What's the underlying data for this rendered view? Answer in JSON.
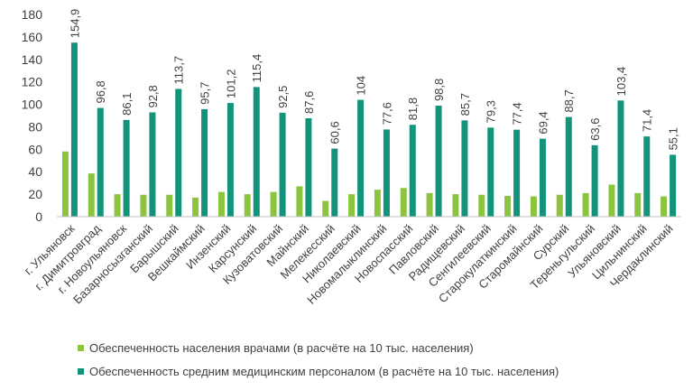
{
  "chart_data": {
    "type": "bar",
    "categories": [
      "г. Ульяновск",
      "г. Димитровград",
      "г. Новоульяновск",
      "Базарносызганский",
      "Барышский",
      "Вешкаймский",
      "Инзенский",
      "Карсунский",
      "Кузоватовский",
      "Майнский",
      "Мелекесский",
      "Николаевский",
      "Новомалыклинский",
      "Новоспасский",
      "Павловский",
      "Радищевский",
      "Сенгилеевский",
      "Старокулаткинский",
      "Старомайнский",
      "Сурский",
      "Тереньгульский",
      "Ульяновский",
      "Цильнинский",
      "Чердаклинский"
    ],
    "series": [
      {
        "name": "Обеспеченность населения врачами (в расчёте на 10 тыс. населения)",
        "color": "#8cc43f",
        "values": [
          58,
          38.5,
          20,
          19.5,
          19.5,
          17,
          22,
          20,
          22,
          27,
          14,
          20,
          24,
          25.5,
          21,
          20,
          19.5,
          18.5,
          18,
          19.5,
          21,
          28.5,
          21,
          18
        ]
      },
      {
        "name": "Обеспеченность средним медицинским персоналом (в расчёте на 10 тыс. населения)",
        "color": "#13947a",
        "values": [
          154.9,
          96.8,
          86.1,
          92.8,
          113.7,
          95.7,
          101.2,
          115.4,
          92.5,
          87.6,
          60.6,
          104,
          77.6,
          81.8,
          98.8,
          85.7,
          79.3,
          77.4,
          69.4,
          88.7,
          63.6,
          103.4,
          71.4,
          55.1
        ],
        "labels": [
          "154,9",
          "96,8",
          "86,1",
          "92,8",
          "113,7",
          "95,7",
          "101,2",
          "115,4",
          "92,5",
          "87,6",
          "60,6",
          "104",
          "77,6",
          "81,8",
          "98,8",
          "85,7",
          "79,3",
          "77,4",
          "69,4",
          "88,7",
          "63,6",
          "103,4",
          "71,4",
          "55,1"
        ]
      }
    ],
    "yticks": [
      "0",
      "20",
      "40",
      "60",
      "80",
      "100",
      "120",
      "140",
      "160",
      "180"
    ],
    "ylim": [
      0,
      180
    ],
    "grid": false,
    "legend_position": "bottom-left"
  }
}
